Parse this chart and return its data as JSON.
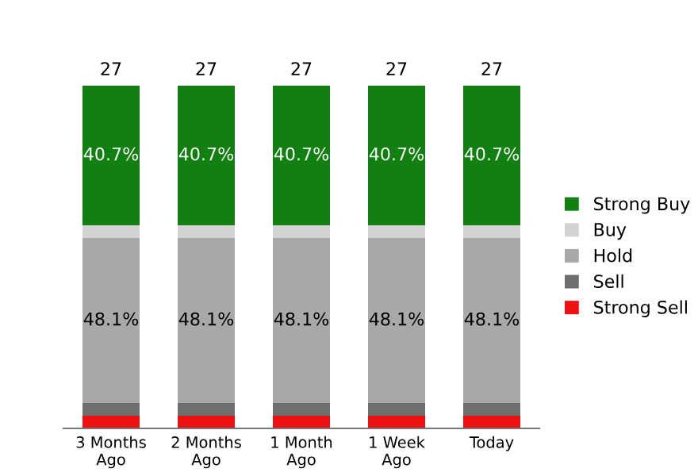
{
  "chart_data": {
    "type": "bar",
    "stacked": true,
    "categories": [
      "3 Months\nAgo",
      "2 Months\nAgo",
      "1 Month\nAgo",
      "1 Week\nAgo",
      "Today"
    ],
    "series": [
      {
        "name": "Strong Sell",
        "color": "#ee1111",
        "values": [
          3.7,
          3.7,
          3.7,
          3.7,
          3.7
        ]
      },
      {
        "name": "Sell",
        "color": "#6e6e6e",
        "values": [
          3.7,
          3.7,
          3.7,
          3.7,
          3.7
        ]
      },
      {
        "name": "Hold",
        "color": "#a9a9a9",
        "values": [
          48.1,
          48.1,
          48.1,
          48.1,
          48.1
        ],
        "value_labels": [
          "48.1%",
          "48.1%",
          "48.1%",
          "48.1%",
          "48.1%"
        ]
      },
      {
        "name": "Buy",
        "color": "#d3d3d3",
        "values": [
          3.7,
          3.7,
          3.7,
          3.7,
          3.7
        ]
      },
      {
        "name": "Strong Buy",
        "color": "#118011",
        "values": [
          40.7,
          40.7,
          40.7,
          40.7,
          40.7
        ],
        "value_labels": [
          "40.7%",
          "40.7%",
          "40.7%",
          "40.7%",
          "40.7%"
        ]
      }
    ],
    "annotations": [
      "27",
      "27",
      "27",
      "27",
      "27"
    ],
    "legend": "right",
    "grid": false,
    "tick_labels": "x"
  }
}
